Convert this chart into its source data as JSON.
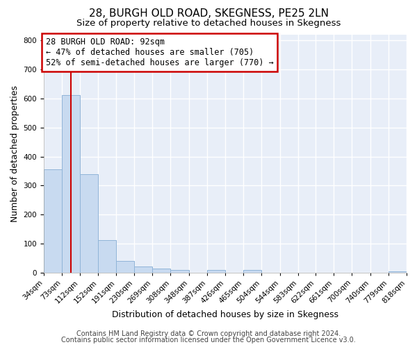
{
  "title": "28, BURGH OLD ROAD, SKEGNESS, PE25 2LN",
  "subtitle": "Size of property relative to detached houses in Skegness",
  "xlabel": "Distribution of detached houses by size in Skegness",
  "ylabel": "Number of detached properties",
  "bar_edges": [
    34,
    73,
    112,
    152,
    191,
    230,
    269,
    308,
    348,
    387,
    426,
    465,
    504,
    544,
    583,
    622,
    661,
    700,
    740,
    779,
    818
  ],
  "bar_heights": [
    357,
    611,
    340,
    113,
    40,
    20,
    15,
    10,
    0,
    8,
    0,
    8,
    0,
    0,
    0,
    0,
    0,
    0,
    0,
    5
  ],
  "bar_color": "#c8daf0",
  "bar_edge_color": "#90b4d8",
  "vline_x": 92,
  "vline_color": "#cc0000",
  "ylim": [
    0,
    820
  ],
  "yticks": [
    0,
    100,
    200,
    300,
    400,
    500,
    600,
    700,
    800
  ],
  "annotation_title": "28 BURGH OLD ROAD: 92sqm",
  "annotation_line1": "← 47% of detached houses are smaller (705)",
  "annotation_line2": "52% of semi-detached houses are larger (770) →",
  "annotation_box_color": "#ffffff",
  "annotation_box_edge": "#cc0000",
  "footer_line1": "Contains HM Land Registry data © Crown copyright and database right 2024.",
  "footer_line2": "Contains public sector information licensed under the Open Government Licence v3.0.",
  "bg_color": "#ffffff",
  "plot_bg_color": "#e8eef8",
  "grid_color": "#ffffff",
  "title_fontsize": 11,
  "subtitle_fontsize": 9.5,
  "axis_label_fontsize": 9,
  "tick_fontsize": 7.5,
  "footer_fontsize": 7,
  "ann_fontsize": 8.5
}
